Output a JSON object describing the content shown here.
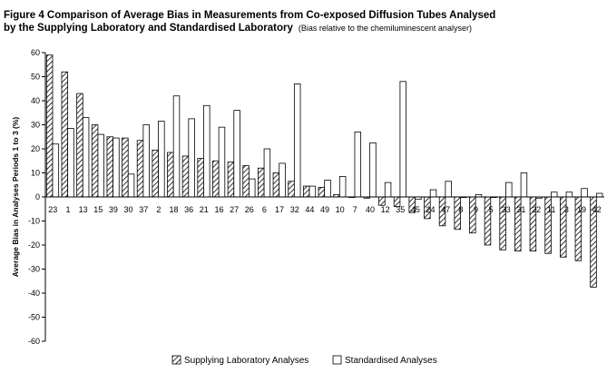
{
  "title_line1": "Figure 4  Comparison of Average Bias in Measurements from Co-exposed Diffusion Tubes Analysed",
  "title_line2": "by the Supplying Laboratory and Standardised Laboratory",
  "subtitle": "(Bias relative to the chemiluminescent analyser)",
  "colors": {
    "bar_fill": "#ffffff",
    "stroke": "#000000",
    "axis": "#000000"
  },
  "chart_data": {
    "type": "bar",
    "ylabel": "Average Bias in Analyses Periods 1 to 3 (%)",
    "xlabel": "",
    "ylim": [
      -60,
      60
    ],
    "yticks": [
      -60,
      -50,
      -40,
      -30,
      -20,
      -10,
      0,
      10,
      20,
      30,
      40,
      50,
      60
    ],
    "grid": false,
    "legend_position": "bottom",
    "categories": [
      "23",
      "1",
      "13",
      "15",
      "39",
      "30",
      "37",
      "2",
      "18",
      "36",
      "21",
      "16",
      "27",
      "26",
      "6",
      "17",
      "32",
      "44",
      "49",
      "10",
      "7",
      "40",
      "12",
      "35",
      "45",
      "24",
      "47",
      "8",
      "9",
      "5",
      "33",
      "31",
      "22",
      "11",
      "3",
      "19",
      "42"
    ],
    "series": [
      {
        "name": "Supplying Laboratory Analyses",
        "pattern": "hatched",
        "values": [
          59,
          52,
          43,
          30,
          25,
          24.5,
          23.5,
          19.5,
          18.5,
          17,
          16,
          15,
          14.5,
          13,
          12,
          10,
          6.5,
          4.5,
          4,
          1,
          0,
          -0.5,
          -3.5,
          -4,
          -6.5,
          -9,
          -12,
          -13.5,
          -15,
          -20,
          -22,
          -22.5,
          -22.5,
          -23.5,
          -25,
          -26.5,
          -37.5
        ]
      },
      {
        "name": "Standardised Analyses",
        "pattern": "plain",
        "values": [
          22,
          28.5,
          33,
          26,
          24.5,
          9.5,
          30,
          31.5,
          42,
          32.5,
          38,
          29,
          36,
          7.5,
          20,
          14,
          47,
          4.5,
          7,
          8.5,
          27,
          22.5,
          6,
          48,
          -1,
          3,
          6.5,
          0,
          1,
          0,
          6,
          10,
          -0.5,
          2,
          2,
          3.5,
          1.5
        ]
      }
    ]
  }
}
